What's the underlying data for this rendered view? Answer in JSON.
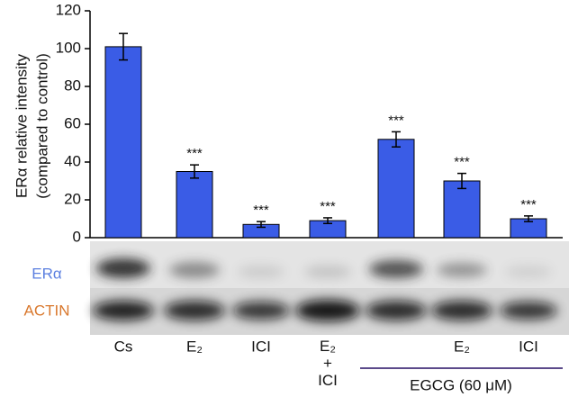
{
  "chart_data": {
    "type": "bar",
    "ylabel": [
      "ERα relative intensity",
      "(compared to control)"
    ],
    "categories": [
      "Cs",
      "E₂",
      "ICI",
      "E₂ + ICI",
      null,
      "E₂",
      "ICI"
    ],
    "values": [
      101,
      35,
      7,
      9,
      52,
      30,
      10
    ],
    "errors": [
      7,
      3.5,
      1.5,
      1.5,
      4,
      4,
      1.5
    ],
    "significance": [
      null,
      "***",
      "***",
      "***",
      "***",
      "***",
      "***"
    ],
    "color": "#3a5ce6",
    "ylim": [
      0,
      120
    ],
    "yticks": [
      0,
      20,
      40,
      60,
      80,
      100,
      120
    ],
    "group_label": "EGCG (60 μM)",
    "blot_labels": [
      "ERα",
      "ACTIN"
    ]
  }
}
